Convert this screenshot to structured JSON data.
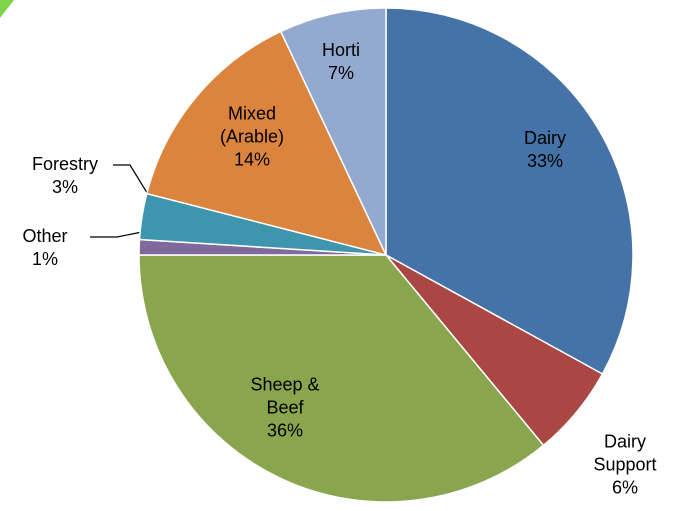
{
  "chart_data": {
    "type": "pie",
    "categories": [
      "Dairy",
      "Dairy Support",
      "Sheep & Beef",
      "Other",
      "Forestry",
      "Mixed (Arable)",
      "Horti"
    ],
    "values": [
      33,
      6,
      36,
      1,
      3,
      14,
      7
    ],
    "value_labels": [
      "33%",
      "6%",
      "36%",
      "1%",
      "3%",
      "14%",
      "7%"
    ],
    "colors": [
      "#4572a7",
      "#aa4643",
      "#89a54e",
      "#80699b",
      "#3d96ae",
      "#db843d",
      "#93a9cf"
    ]
  }
}
